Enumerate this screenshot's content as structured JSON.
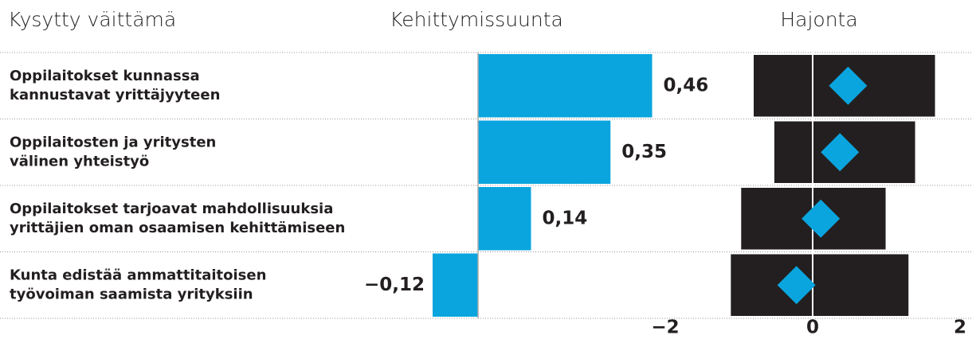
{
  "chart_data": [
    {
      "type": "bar",
      "title": "Kehittymissuunta",
      "ylabel": "Kysytty väittämä",
      "categories": [
        [
          "Oppilaitokset kunnassa",
          "kannustavat yrittäjyyteen"
        ],
        [
          "Oppilaitosten ja yritysten",
          "välinen yhteistyö"
        ],
        [
          "Oppilaitokset tarjoavat mahdollisuuksia",
          "yrittäjien oman osaamisen kehittämiseen"
        ],
        [
          "Kunta edistää ammattitaitoisen",
          "työvoiman saamista yrityksiin"
        ]
      ],
      "values": [
        0.46,
        0.35,
        0.14,
        -0.12
      ],
      "value_labels": [
        "0,46",
        "0,35",
        "0,14",
        "−0,12"
      ],
      "color": "#0aa5de",
      "xlim": [
        -0.2,
        0.6
      ]
    },
    {
      "type": "range",
      "title": "Hajonta",
      "series": [
        {
          "name": "low",
          "color": "#231f20",
          "values": [
            -0.8,
            -0.52,
            -0.97,
            -1.11
          ]
        },
        {
          "name": "high",
          "color": "#231f20",
          "values": [
            1.66,
            1.39,
            0.99,
            1.3
          ]
        },
        {
          "name": "mean",
          "color": "#0aa5de",
          "values": [
            0.48,
            0.37,
            0.11,
            -0.22
          ]
        }
      ],
      "xlim": [
        -2,
        2
      ],
      "xticks": [
        {
          "value": -2,
          "label": "−2"
        },
        0,
        2
      ]
    }
  ]
}
